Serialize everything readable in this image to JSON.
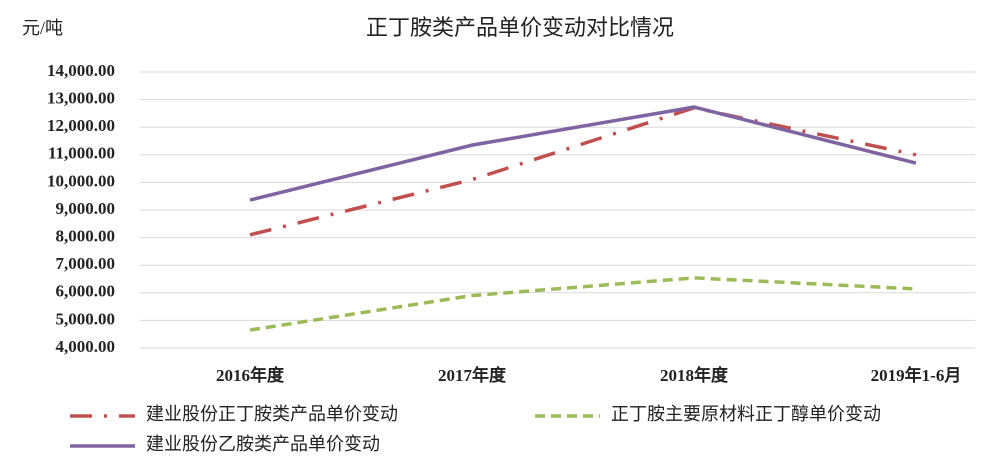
{
  "chart_data": {
    "type": "line",
    "title": "正丁胺类产品单价变动对比情况",
    "y_label": "元/吨",
    "categories": [
      "2016年度",
      "2017年度",
      "2018年度",
      "2019年1-6月"
    ],
    "series": [
      {
        "name": "建业股份正丁胺类产品单价变动",
        "color": "#c0504d",
        "linestyle": "dashdot",
        "values": [
          8100,
          10100,
          12700,
          11000
        ]
      },
      {
        "name": "正丁胺主要原材料正丁醇单价变动",
        "color": "#9bbb59",
        "linestyle": "dashed",
        "values": [
          4650,
          5900,
          6540,
          6140
        ]
      },
      {
        "name": "建业股份乙胺类产品单价变动",
        "color": "#8064a2",
        "linestyle": "solid",
        "values": [
          9360,
          11350,
          12730,
          10700
        ]
      }
    ],
    "ylim": [
      4000,
      14000
    ],
    "yticks": [
      {
        "value": 4000,
        "label": "4,000.00"
      },
      {
        "value": 5000,
        "label": "5,000.00"
      },
      {
        "value": 6000,
        "label": "6,000.00"
      },
      {
        "value": 7000,
        "label": "7,000.00"
      },
      {
        "value": 8000,
        "label": "8,000.00"
      },
      {
        "value": 9000,
        "label": "9,000.00"
      },
      {
        "value": 10000,
        "label": "10,000.00"
      },
      {
        "value": 11000,
        "label": "11,000.00"
      },
      {
        "value": 12000,
        "label": "12,000.00"
      },
      {
        "value": 13000,
        "label": "13,000.00"
      },
      {
        "value": 14000,
        "label": "14,000.00"
      }
    ],
    "grid": true
  }
}
